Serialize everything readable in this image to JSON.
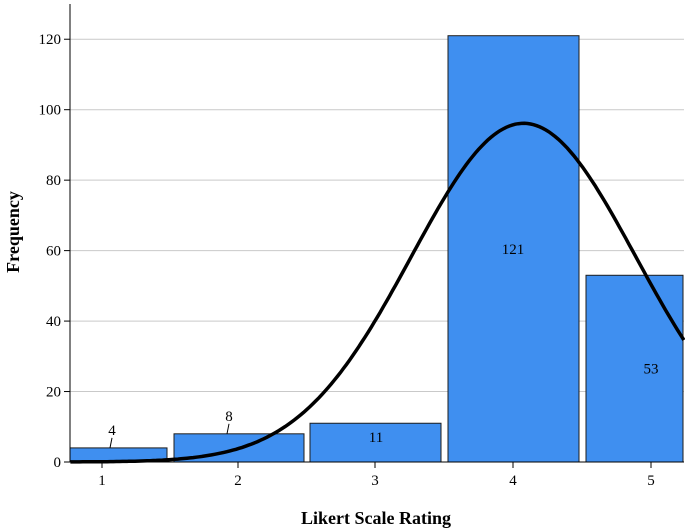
{
  "chart_data": {
    "type": "bar",
    "categories": [
      "1",
      "2",
      "3",
      "4",
      "5"
    ],
    "values": [
      4,
      8,
      11,
      121,
      53
    ],
    "data_labels": [
      "4",
      "8",
      "11",
      "121",
      "53"
    ],
    "xlabel": "Likert Scale Rating",
    "ylabel": "Frequency",
    "ylim": [
      0,
      130
    ],
    "yticks": [
      "0",
      "20",
      "40",
      "60",
      "80",
      "100",
      "120"
    ],
    "grid": true,
    "bar_color": "#3f8ff0",
    "curve": {
      "type": "normal",
      "peak_x": 4.1,
      "peak_y": 96,
      "color": "#000000"
    }
  }
}
